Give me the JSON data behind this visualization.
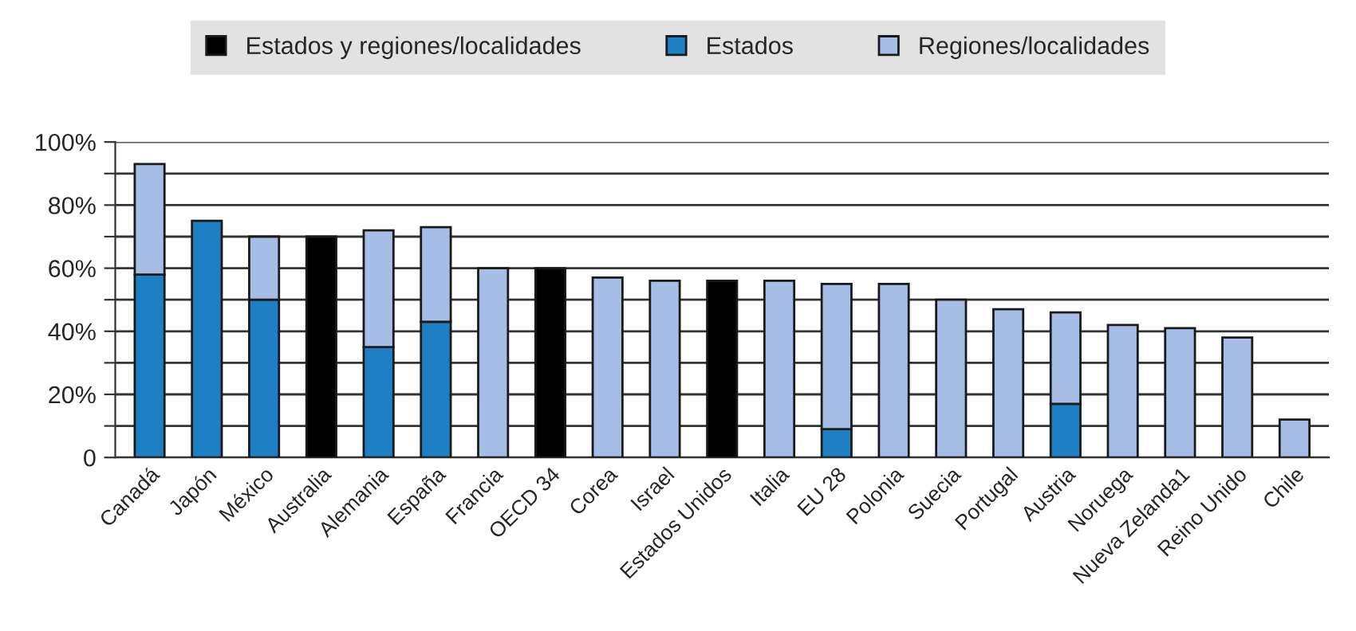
{
  "chart_data": {
    "type": "bar",
    "stacked": true,
    "categories": [
      "Canadá",
      "Japón",
      "México",
      "Australia",
      "Alemania",
      "España",
      "Francia",
      "OECD 34",
      "Corea",
      "Israel",
      "Estados Unidos",
      "Italia",
      "EU 28",
      "Polonia",
      "Suecia",
      "Portugal",
      "Austria",
      "Noruega",
      "Nueva Zelanda1",
      "Reino Unido",
      "Chile"
    ],
    "series": [
      {
        "name": "Estados y regiones/localidades",
        "color": "#000000",
        "values": [
          null,
          null,
          null,
          70,
          null,
          null,
          null,
          60,
          null,
          null,
          56,
          null,
          null,
          null,
          null,
          null,
          null,
          null,
          null,
          null,
          null
        ]
      },
      {
        "name": "Estados",
        "color": "#1f7fc4",
        "values": [
          58,
          75,
          50,
          null,
          35,
          43,
          null,
          null,
          null,
          null,
          null,
          null,
          9,
          null,
          null,
          null,
          17,
          null,
          null,
          null,
          null
        ]
      },
      {
        "name": "Regiones/localidades",
        "color": "#a6bde6",
        "values": [
          35,
          null,
          20,
          null,
          37,
          30,
          60,
          null,
          57,
          56,
          null,
          56,
          46,
          55,
          50,
          47,
          29,
          42,
          41,
          38,
          12
        ]
      }
    ],
    "ylim": [
      0,
      100
    ],
    "yticks": [
      {
        "value": 0,
        "label": "0"
      },
      {
        "value": 10,
        "label": null
      },
      {
        "value": 20,
        "label": "20%"
      },
      {
        "value": 30,
        "label": null
      },
      {
        "value": 40,
        "label": "40%"
      },
      {
        "value": 50,
        "label": null
      },
      {
        "value": 60,
        "label": "60%"
      },
      {
        "value": 70,
        "label": null
      },
      {
        "value": 80,
        "label": "80%"
      },
      {
        "value": 90,
        "label": null
      },
      {
        "value": 100,
        "label": "100%"
      }
    ],
    "grid": "y",
    "legend": "top"
  }
}
